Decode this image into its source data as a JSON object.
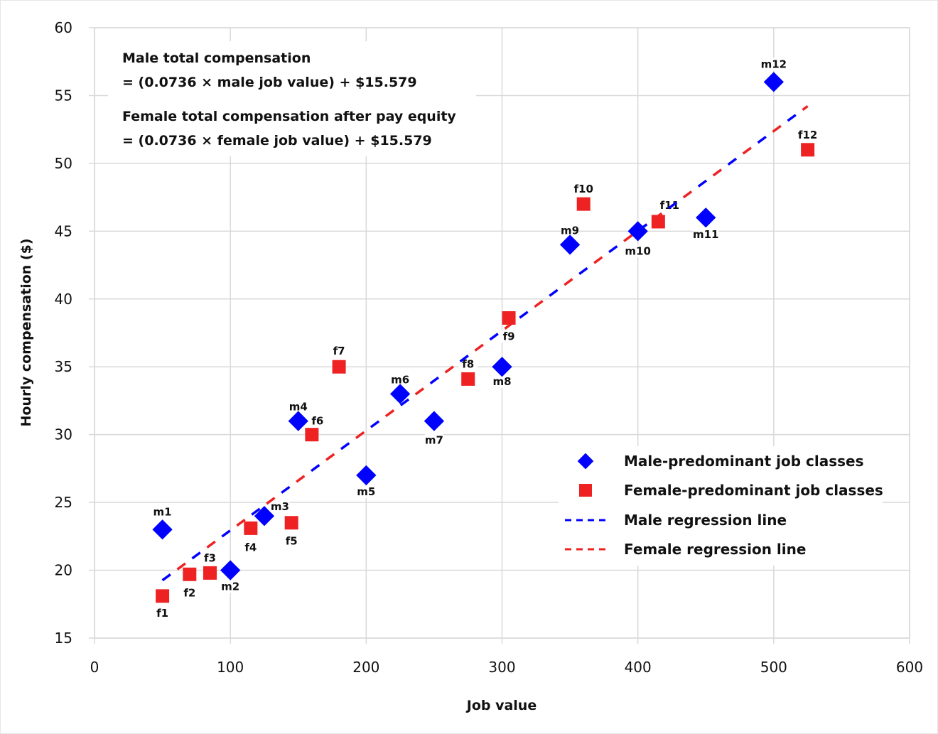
{
  "chart_data": {
    "type": "scatter",
    "title": "",
    "xlabel": "Job value",
    "ylabel": "Hourly compensation ($)",
    "xlim": [
      0,
      600
    ],
    "ylim": [
      15,
      60
    ],
    "xticks": [
      0,
      100,
      200,
      300,
      400,
      500,
      600
    ],
    "yticks": [
      15,
      20,
      25,
      30,
      35,
      40,
      45,
      50,
      55,
      60
    ],
    "grid": true,
    "legend_position": "bottom-right",
    "annotations": [
      "Male total compensation",
      "= (0.0736 × male job value) + $15.579",
      "Female total compensation after pay equity",
      "= (0.0736 × female job value) + $15.579"
    ],
    "series": [
      {
        "name": "Male-predominant job classes",
        "marker": "diamond",
        "color": "#0000ff",
        "points": [
          {
            "label": "m1",
            "x": 50,
            "y": 23
          },
          {
            "label": "m2",
            "x": 100,
            "y": 20
          },
          {
            "label": "m3",
            "x": 125,
            "y": 24
          },
          {
            "label": "m4",
            "x": 150,
            "y": 31
          },
          {
            "label": "m5",
            "x": 200,
            "y": 27
          },
          {
            "label": "m6",
            "x": 225,
            "y": 33
          },
          {
            "label": "m7",
            "x": 250,
            "y": 31
          },
          {
            "label": "m8",
            "x": 300,
            "y": 35
          },
          {
            "label": "m9",
            "x": 350,
            "y": 44
          },
          {
            "label": "m10",
            "x": 400,
            "y": 45
          },
          {
            "label": "m11",
            "x": 450,
            "y": 46
          },
          {
            "label": "m12",
            "x": 500,
            "y": 56
          }
        ]
      },
      {
        "name": "Female-predominant job classes",
        "marker": "square",
        "color": "#ee2222",
        "points": [
          {
            "label": "f1",
            "x": 50,
            "y": 18.1
          },
          {
            "label": "f2",
            "x": 70,
            "y": 19.7
          },
          {
            "label": "f3",
            "x": 85,
            "y": 19.8
          },
          {
            "label": "f4",
            "x": 115,
            "y": 23.1
          },
          {
            "label": "f5",
            "x": 145,
            "y": 23.5
          },
          {
            "label": "f6",
            "x": 160,
            "y": 30
          },
          {
            "label": "f7",
            "x": 180,
            "y": 35
          },
          {
            "label": "f8",
            "x": 275,
            "y": 34.1
          },
          {
            "label": "f9",
            "x": 305,
            "y": 38.6
          },
          {
            "label": "f10",
            "x": 360,
            "y": 47
          },
          {
            "label": "f11",
            "x": 415,
            "y": 45.7
          },
          {
            "label": "f12",
            "x": 525,
            "y": 51
          }
        ]
      }
    ],
    "regression": [
      {
        "name": "Male regression line",
        "color": "#0000ff",
        "slope": 0.0736,
        "intercept": 15.579,
        "x_range": [
          50,
          525
        ]
      },
      {
        "name": "Female regression line",
        "color": "#ee2222",
        "slope": 0.0736,
        "intercept": 15.579,
        "x_range": [
          50,
          525
        ]
      }
    ]
  }
}
